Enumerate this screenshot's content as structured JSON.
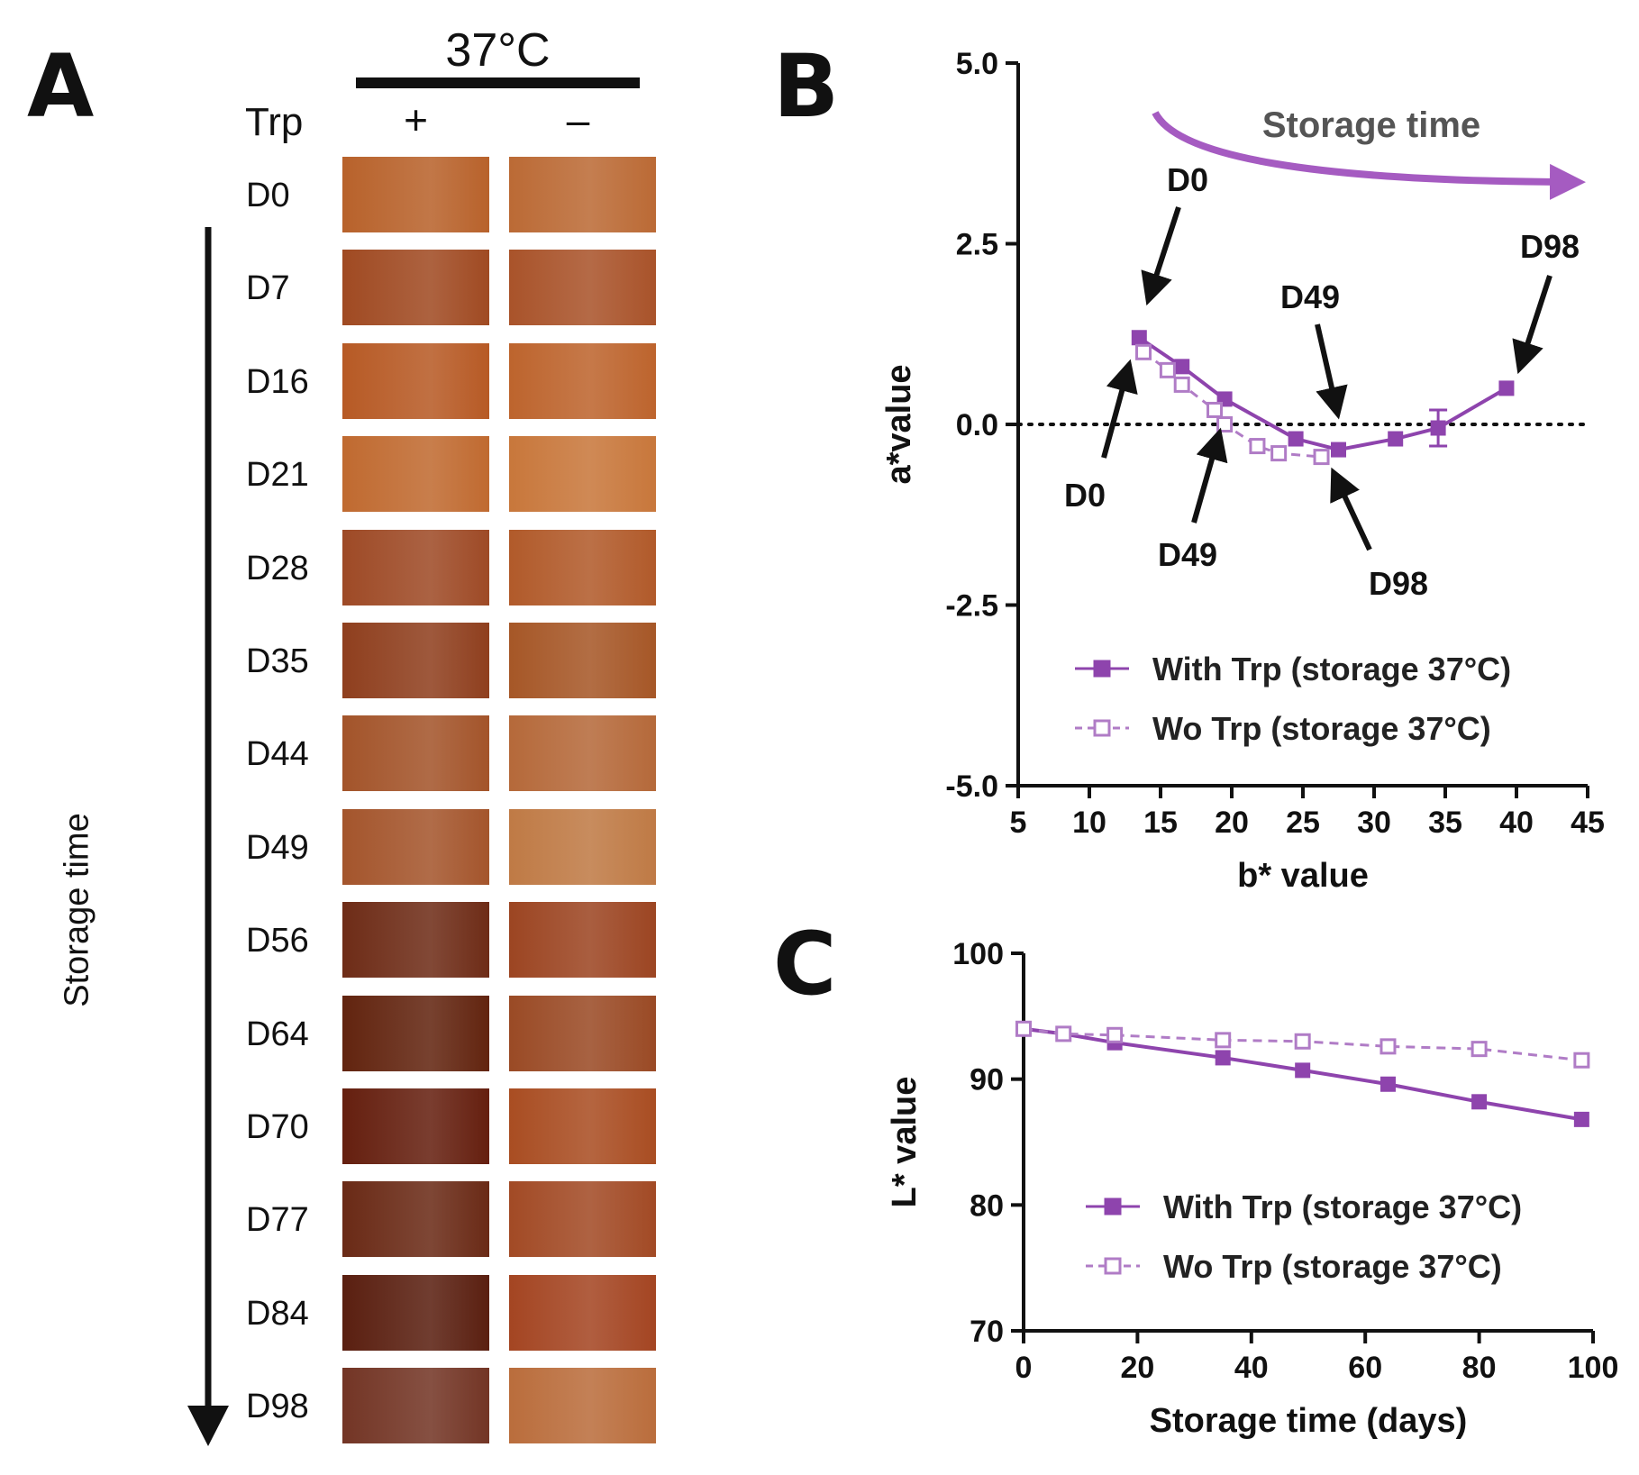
{
  "panel_a": {
    "letter": "A",
    "temperature": "37°C",
    "trp_label": "Trp",
    "with_sign": "+",
    "without_sign": "–",
    "axis_label": "Storage time",
    "days": [
      {
        "label": "D0",
        "with_color": "#b8622b",
        "without_color": "#bb6a35"
      },
      {
        "label": "D7",
        "with_color": "#a04a22",
        "without_color": "#a9532a"
      },
      {
        "label": "D16",
        "with_color": "#b75a25",
        "without_color": "#bd642d"
      },
      {
        "label": "D21",
        "with_color": "#c06a30",
        "without_color": "#c8773b"
      },
      {
        "label": "D28",
        "with_color": "#9e4a26",
        "without_color": "#b15a2a"
      },
      {
        "label": "D35",
        "with_color": "#8f3f1e",
        "without_color": "#a65727"
      },
      {
        "label": "D44",
        "with_color": "#a3542a",
        "without_color": "#b5693a"
      },
      {
        "label": "D49",
        "with_color": "#a4552c",
        "without_color": "#bf7a45"
      },
      {
        "label": "D56",
        "with_color": "#6e2c17",
        "without_color": "#9c4522"
      },
      {
        "label": "D64",
        "with_color": "#62240f",
        "without_color": "#9a4a25"
      },
      {
        "label": "D70",
        "with_color": "#651f0f",
        "without_color": "#a94d22"
      },
      {
        "label": "D77",
        "with_color": "#6a2a16",
        "without_color": "#a24a25"
      },
      {
        "label": "D84",
        "with_color": "#5a1f10",
        "without_color": "#a44522"
      },
      {
        "label": "D98",
        "with_color": "#733525",
        "without_color": "#ba6d3c"
      }
    ]
  },
  "chart_data": [
    {
      "panel": "B",
      "type": "line",
      "title": "",
      "xlabel": "b* value",
      "ylabel": "a*value",
      "xlim": [
        5,
        45
      ],
      "ylim": [
        -5.0,
        5.0
      ],
      "xticks": [
        "5",
        "10",
        "15",
        "20",
        "25",
        "30",
        "35",
        "40",
        "45"
      ],
      "yticks": [
        "5.0",
        "2.5",
        "0.0",
        "-2.5",
        "-5.0"
      ],
      "reference_line": {
        "y": 0,
        "style": "dotted"
      },
      "series": [
        {
          "name": "With Trp (storage 37°C)",
          "marker": "filled-square",
          "line": "solid",
          "color": "#8e44ad",
          "points": [
            {
              "x": 13.5,
              "y": 1.2
            },
            {
              "x": 16.5,
              "y": 0.8
            },
            {
              "x": 19.5,
              "y": 0.35
            },
            {
              "x": 24.5,
              "y": -0.2
            },
            {
              "x": 27.5,
              "y": -0.35
            },
            {
              "x": 31.5,
              "y": -0.2
            },
            {
              "x": 34.5,
              "y": -0.05,
              "err": 0.25
            },
            {
              "x": 39.3,
              "y": 0.5
            }
          ]
        },
        {
          "name": "Wo Trp (storage 37°C)",
          "marker": "open-square",
          "line": "dashed",
          "color": "#b07cc6",
          "points": [
            {
              "x": 13.8,
              "y": 1.0
            },
            {
              "x": 15.5,
              "y": 0.75
            },
            {
              "x": 16.5,
              "y": 0.55
            },
            {
              "x": 18.8,
              "y": 0.2
            },
            {
              "x": 19.5,
              "y": 0.0
            },
            {
              "x": 21.8,
              "y": -0.3
            },
            {
              "x": 23.3,
              "y": -0.4
            },
            {
              "x": 26.3,
              "y": -0.45
            }
          ]
        }
      ],
      "annotations": {
        "storage_time": "Storage time",
        "with_d0": "D0",
        "with_d49": "D49",
        "with_d98": "D98",
        "wo_d0": "D0",
        "wo_d49": "D49",
        "wo_d98": "D98"
      },
      "legend_position": "bottom-right"
    },
    {
      "panel": "C",
      "type": "line",
      "title": "",
      "xlabel": "Storage time (days)",
      "ylabel": "L* value",
      "xlim": [
        0,
        100
      ],
      "ylim": [
        70,
        100
      ],
      "xticks": [
        "0",
        "20",
        "40",
        "60",
        "80",
        "100"
      ],
      "yticks": [
        "100",
        "90",
        "80",
        "70"
      ],
      "series": [
        {
          "name": "With Trp (storage 37°C)",
          "marker": "filled-square",
          "line": "solid",
          "color": "#8e44ad",
          "points": [
            {
              "x": 0,
              "y": 94.0
            },
            {
              "x": 7,
              "y": 93.6
            },
            {
              "x": 16,
              "y": 92.9
            },
            {
              "x": 35,
              "y": 91.7
            },
            {
              "x": 49,
              "y": 90.7
            },
            {
              "x": 64,
              "y": 89.6
            },
            {
              "x": 80,
              "y": 88.2
            },
            {
              "x": 98,
              "y": 86.8
            }
          ]
        },
        {
          "name": "Wo Trp (storage 37°C)",
          "marker": "open-square",
          "line": "dashed",
          "color": "#b07cc6",
          "points": [
            {
              "x": 0,
              "y": 94.0
            },
            {
              "x": 7,
              "y": 93.6
            },
            {
              "x": 16,
              "y": 93.5
            },
            {
              "x": 35,
              "y": 93.1
            },
            {
              "x": 49,
              "y": 93.0
            },
            {
              "x": 64,
              "y": 92.6
            },
            {
              "x": 80,
              "y": 92.4
            },
            {
              "x": 98,
              "y": 91.5
            }
          ]
        }
      ],
      "legend_position": "bottom-right"
    }
  ],
  "panel_b_letter": "B",
  "panel_c_letter": "C"
}
